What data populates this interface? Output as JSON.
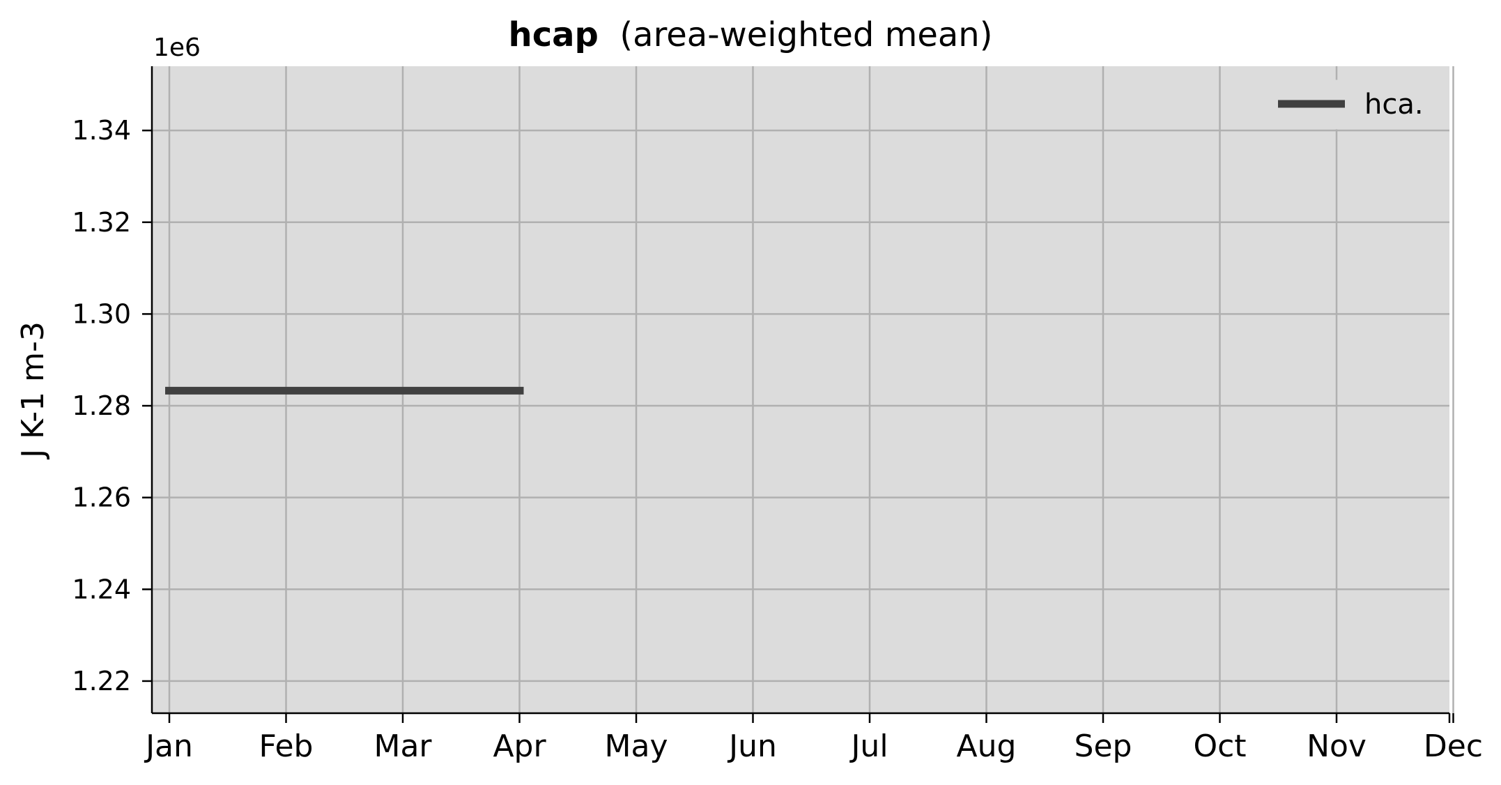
{
  "chart_data": {
    "type": "line",
    "title": "hcap",
    "subtitle": "(area-weighted mean)",
    "xlabel": "",
    "ylabel": "J K-1 m-3",
    "y_offset_label": "1e6",
    "categories": [
      "Jan",
      "Feb",
      "Mar",
      "Apr",
      "May",
      "Jun",
      "Jul",
      "Aug",
      "Sep",
      "Oct",
      "Nov",
      "Dec"
    ],
    "yticks": [
      "1.22",
      "1.24",
      "1.26",
      "1.28",
      "1.30",
      "1.32",
      "1.34"
    ],
    "ylim": [
      1.213,
      1.354
    ],
    "grid": true,
    "legend_position": "top-right",
    "series": [
      {
        "name": "hca.",
        "color": "#404040",
        "x": [
          "Jan",
          "Feb",
          "Mar",
          "Apr"
        ],
        "values": [
          1.2833,
          1.2833,
          1.2833,
          1.2833
        ]
      }
    ],
    "colors": {
      "plot_background": "#dcdcdc",
      "grid": "#b0b0b0",
      "axis": "#000000"
    }
  }
}
